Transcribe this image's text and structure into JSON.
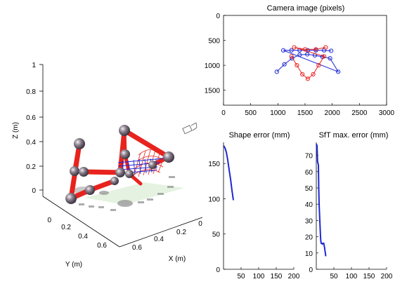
{
  "colors": {
    "robot": "#e8231e",
    "joint": "#6e6470",
    "mesh_blue": "#1e28d2",
    "mesh_red": "#e8231e",
    "error_line": "#1e28d2",
    "axis": "#000000",
    "shadow": "#9a9a9a",
    "floor_patch": "#cfe8c8"
  },
  "chart_data": [
    {
      "id": "scene3d",
      "type": "scatter",
      "title": "",
      "zlabel": "Z (m)",
      "ylabel": "Y (m)",
      "xlabel": "X (m)",
      "z_ticks": [
        "0",
        "0.2",
        "0.4",
        "0.6",
        "0.8",
        "1"
      ],
      "y_ticks": [
        "0",
        "0.2",
        "0.4",
        "0.6"
      ],
      "x_ticks": [
        "0",
        "0.2",
        "0.4",
        "0.6"
      ],
      "zlim": [
        0,
        1
      ],
      "grid": false
    },
    {
      "id": "camera",
      "type": "scatter",
      "title": "Camera image (pixels)",
      "xlim": [
        0,
        3000
      ],
      "ylim": [
        1800,
        0
      ],
      "x_ticks": [
        "0",
        "500",
        "1000",
        "1500",
        "2000",
        "2500",
        "3000"
      ],
      "y_ticks": [
        "0",
        "500",
        "1000",
        "1500"
      ],
      "series": [
        {
          "color": "blue",
          "points": [
            [
              980,
              1130
            ],
            [
              1120,
              980
            ],
            [
              1260,
              860
            ],
            [
              1400,
              790
            ],
            [
              1540,
              780
            ],
            [
              1680,
              800
            ],
            [
              1820,
              830
            ],
            [
              1960,
              860
            ],
            [
              2110,
              1130
            ],
            [
              1100,
              700
            ],
            [
              1250,
              700
            ],
            [
              1400,
              700
            ],
            [
              1550,
              700
            ],
            [
              1700,
              700
            ],
            [
              1850,
              700
            ],
            [
              1980,
              710
            ]
          ]
        },
        {
          "color": "red",
          "points": [
            [
              1250,
              820
            ],
            [
              1350,
              1000
            ],
            [
              1450,
              1180
            ],
            [
              1550,
              1270
            ],
            [
              1650,
              1180
            ],
            [
              1750,
              1000
            ],
            [
              1850,
              820
            ],
            [
              1300,
              640
            ],
            [
              1500,
              680
            ],
            [
              1700,
              680
            ],
            [
              1880,
              640
            ]
          ]
        }
      ]
    },
    {
      "id": "shape_error",
      "type": "line",
      "title": "Shape error (mm)",
      "xlim": [
        0,
        200
      ],
      "ylim": [
        0,
        180
      ],
      "x_ticks": [
        "50",
        "100",
        "150",
        "200"
      ],
      "y_ticks": [
        "0",
        "50",
        "100",
        "150"
      ],
      "x": [
        0,
        2,
        5,
        8,
        12,
        16,
        20,
        24,
        28
      ],
      "y": [
        175,
        174,
        171,
        166,
        155,
        141,
        128,
        112,
        98
      ]
    },
    {
      "id": "sft_error",
      "type": "line",
      "title": "SfT max. error (mm)",
      "xlim": [
        0,
        200
      ],
      "ylim": [
        0,
        78
      ],
      "x_ticks": [
        "50",
        "100",
        "150",
        "200"
      ],
      "y_ticks": [
        "0",
        "10",
        "20",
        "30",
        "40",
        "50",
        "60",
        "70"
      ],
      "x": [
        0,
        2,
        3,
        3.5,
        5,
        6,
        7,
        8,
        10,
        12,
        13,
        14,
        15,
        17,
        19,
        21,
        23,
        25,
        27
      ],
      "y": [
        77,
        76,
        70,
        66,
        65,
        64,
        50,
        40,
        30,
        20,
        17,
        16,
        16,
        15.5,
        16,
        16,
        14,
        11,
        8
      ]
    }
  ]
}
